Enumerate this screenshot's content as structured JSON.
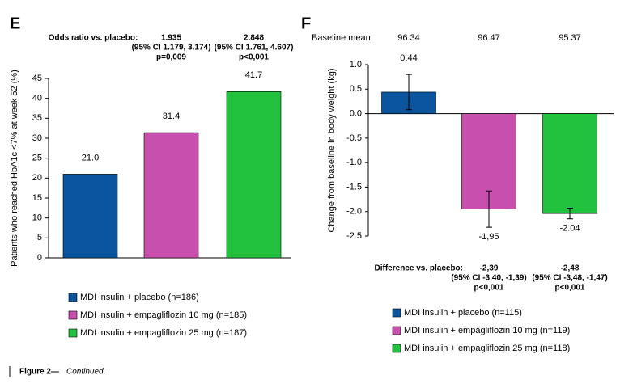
{
  "chart_data": [
    {
      "type": "bar",
      "panel": "E",
      "ylabel": "Patients who reached HbA1c <7% at week 52 (%)",
      "ylim": [
        0,
        45
      ],
      "yticks": [
        0,
        5,
        10,
        15,
        20,
        25,
        30,
        35,
        40,
        45
      ],
      "annotations": {
        "label": "Odds ratio vs. placebo:",
        "items": [
          [
            "1.935",
            "(95% CI 1.179, 3.174)",
            "p=0,009"
          ],
          [
            "2.848",
            "(95% CI 1.761, 4.607)",
            "p<0,001"
          ]
        ]
      },
      "categories": [
        null
      ],
      "series": [
        {
          "name": "MDI insulin + placebo (n=186)",
          "color": "#0b559f",
          "values": [
            21.0
          ],
          "value_labels": [
            "21.0"
          ]
        },
        {
          "name": "MDI insulin + empagliflozin 10 mg (n=185)",
          "color": "#c94fae",
          "values": [
            31.4
          ]
        },
        {
          "name": "MDI insulin + empagliflozin 25 mg (n=187)",
          "color": "#22c23f",
          "values": [
            41.7
          ]
        }
      ]
    },
    {
      "type": "bar",
      "panel": "F",
      "ylabel": "Change from baseline in body weight (kg)",
      "ylim": [
        -2.5,
        1.0
      ],
      "yticks": [
        {
          "value": 1.0,
          "label": "1.0"
        },
        0.5,
        {
          "value": 0.0,
          "label": "0.0"
        },
        -0.5,
        {
          "value": -1.0,
          "label": "-1.0"
        },
        -1.5,
        {
          "value": -2.0,
          "label": "-2.0"
        },
        -2.5
      ],
      "baseline": {
        "label": "Baseline mean",
        "values": [
          96.34,
          96.47,
          95.37
        ]
      },
      "annotations": {
        "label": "Difference vs. placebo:",
        "items": [
          [
            "-2,39",
            "(95% CI -3,40, -1,39)",
            "p<0,001"
          ],
          [
            "-2,48",
            "(95% CI -3,48, -1,47)",
            "p<0,001"
          ]
        ]
      },
      "categories": [
        null
      ],
      "series": [
        {
          "name": "MDI insulin + placebo (n=115)",
          "color": "#0b559f",
          "values": [
            0.44
          ],
          "errors": [
            0.36
          ]
        },
        {
          "name": "MDI insulin + empagliflozin 10 mg (n=119)",
          "color": "#c94fae",
          "values": [
            -1.95
          ],
          "errors": [
            0.37
          ],
          "value_labels": [
            "-1,95"
          ]
        },
        {
          "name": "MDI insulin + empagliflozin 25 mg (n=118)",
          "color": "#22c23f",
          "values": [
            -2.04
          ],
          "errors": [
            0.11
          ]
        }
      ]
    }
  ],
  "caption": {
    "label": "Figure 2—",
    "text": "Continued."
  }
}
